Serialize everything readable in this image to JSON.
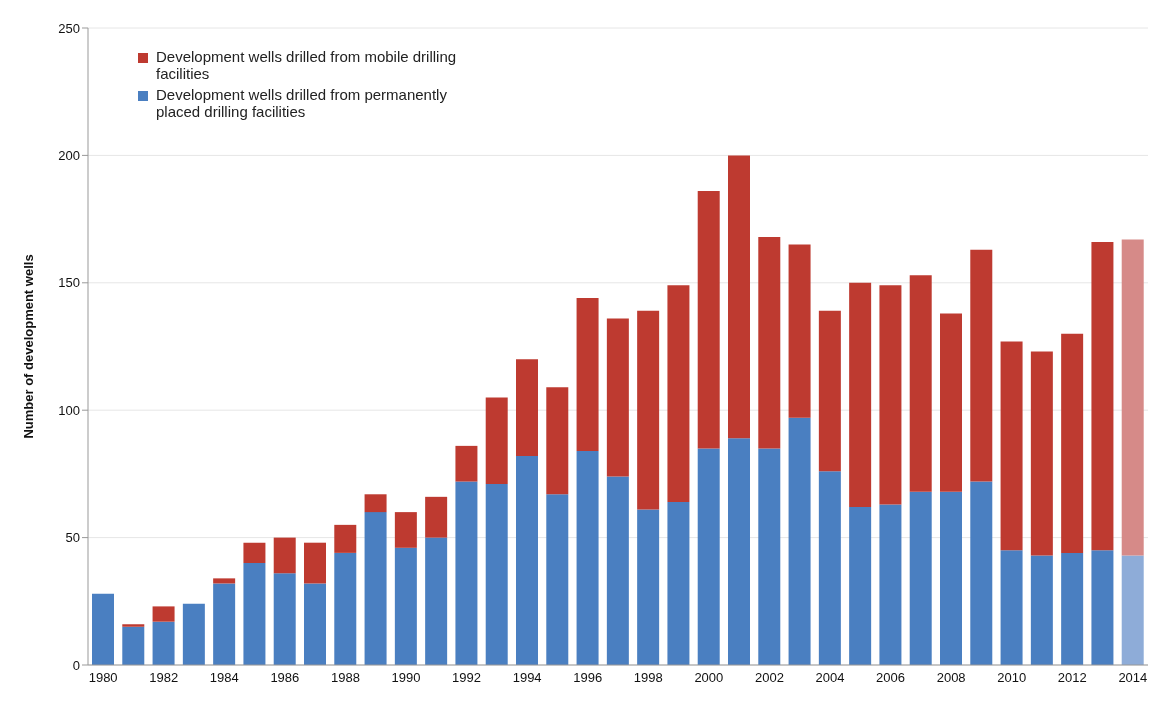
{
  "chart_data": {
    "type": "bar",
    "stacked": true,
    "ylabel": "Number of development wells",
    "categories": [
      "1980",
      null,
      "1982",
      null,
      "1984",
      null,
      "1986",
      null,
      "1988",
      null,
      "1990",
      null,
      "1992",
      null,
      "1994",
      null,
      "1996",
      null,
      "1998",
      null,
      "2000",
      null,
      "2002",
      null,
      "2004",
      null,
      "2006",
      null,
      "2008",
      null,
      "2010",
      null,
      "2012",
      null,
      "2014"
    ],
    "series": [
      {
        "name": "Development wells drilled from permanently placed drilling facilities",
        "color": "#4a7fc1",
        "colors": [
          "#4a7fc1",
          "#4a7fc1",
          "#4a7fc1",
          "#4a7fc1",
          "#4a7fc1",
          "#4a7fc1",
          "#4a7fc1",
          "#4a7fc1",
          "#4a7fc1",
          "#4a7fc1",
          "#4a7fc1",
          "#4a7fc1",
          "#4a7fc1",
          "#4a7fc1",
          "#4a7fc1",
          "#4a7fc1",
          "#4a7fc1",
          "#4a7fc1",
          "#4a7fc1",
          "#4a7fc1",
          "#4a7fc1",
          "#4a7fc1",
          "#4a7fc1",
          "#4a7fc1",
          "#4a7fc1",
          "#4a7fc1",
          "#4a7fc1",
          "#4a7fc1",
          "#4a7fc1",
          "#4a7fc1",
          "#4a7fc1",
          "#4a7fc1",
          "#4a7fc1",
          "#4a7fc1",
          "#8eacd8"
        ],
        "values": [
          28,
          15,
          17,
          24,
          32,
          40,
          36,
          32,
          44,
          60,
          46,
          50,
          72,
          71,
          82,
          67,
          84,
          74,
          61,
          64,
          85,
          89,
          85,
          97,
          76,
          62,
          63,
          68,
          68,
          72,
          45,
          43,
          44,
          45,
          43
        ]
      },
      {
        "name": "Development wells drilled from mobile drilling facilities",
        "color": "#be3a30",
        "colors": [
          "#be3a30",
          "#be3a30",
          "#be3a30",
          "#be3a30",
          "#be3a30",
          "#be3a30",
          "#be3a30",
          "#be3a30",
          "#be3a30",
          "#be3a30",
          "#be3a30",
          "#be3a30",
          "#be3a30",
          "#be3a30",
          "#be3a30",
          "#be3a30",
          "#be3a30",
          "#be3a30",
          "#be3a30",
          "#be3a30",
          "#be3a30",
          "#be3a30",
          "#be3a30",
          "#be3a30",
          "#be3a30",
          "#be3a30",
          "#be3a30",
          "#be3a30",
          "#be3a30",
          "#be3a30",
          "#be3a30",
          "#be3a30",
          "#be3a30",
          "#be3a30",
          "#d68a88"
        ],
        "values": [
          0,
          1,
          6,
          0,
          2,
          8,
          14,
          16,
          11,
          7,
          14,
          16,
          14,
          34,
          38,
          42,
          60,
          62,
          78,
          85,
          101,
          111,
          83,
          68,
          63,
          88,
          86,
          85,
          70,
          91,
          82,
          80,
          86,
          121,
          124
        ]
      }
    ],
    "ylim": [
      0,
      250
    ],
    "yticks": [
      0,
      50,
      100,
      150,
      200,
      250
    ],
    "grid": "y",
    "legend": "top left"
  }
}
